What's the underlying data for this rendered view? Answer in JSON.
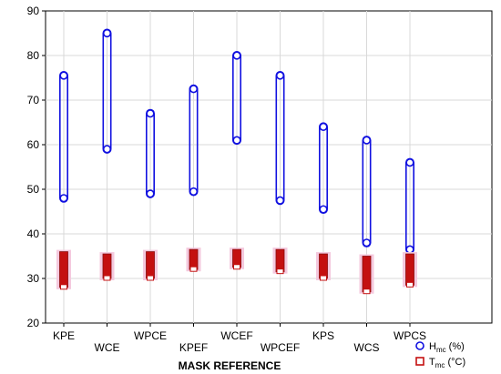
{
  "chart_data": {
    "type": "scatter",
    "xlabel": "MASK REFERENCE",
    "ylabel": "",
    "ylim": [
      20,
      90
    ],
    "yticks": [
      20,
      30,
      40,
      50,
      60,
      70,
      80,
      90
    ],
    "grid": true,
    "legend_position": "bottom-right",
    "categories": [
      "KPE",
      "WCE",
      "WPCE",
      "KPEF",
      "WCEF",
      "WPCEF",
      "KPS",
      "WCS",
      "WPCS"
    ],
    "series": [
      {
        "name": "H",
        "subscript": "mc",
        "unit": " (%)",
        "color": "#1010e0",
        "marker": "circle",
        "ranges": [
          {
            "category": "KPE",
            "min": 48,
            "max": 75.5
          },
          {
            "category": "WCE",
            "min": 59,
            "max": 85
          },
          {
            "category": "WPCE",
            "min": 49,
            "max": 67
          },
          {
            "category": "KPEF",
            "min": 49.5,
            "max": 72.5
          },
          {
            "category": "WCEF",
            "min": 61,
            "max": 80
          },
          {
            "category": "WPCEF",
            "min": 47.5,
            "max": 75.5
          },
          {
            "category": "KPS",
            "min": 45.5,
            "max": 64
          },
          {
            "category": "WCS",
            "min": 38,
            "max": 61
          },
          {
            "category": "WPCS",
            "min": 36.5,
            "max": 56
          }
        ]
      },
      {
        "name": "T",
        "subscript": "mc",
        "unit": " (°C)",
        "color": "#c41010",
        "marker": "square",
        "ranges": [
          {
            "category": "KPE",
            "min": 28,
            "max": 36
          },
          {
            "category": "WCE",
            "min": 30,
            "max": 35.5
          },
          {
            "category": "WPCE",
            "min": 30,
            "max": 36
          },
          {
            "category": "KPEF",
            "min": 32,
            "max": 36.5
          },
          {
            "category": "WCEF",
            "min": 32.5,
            "max": 36.5
          },
          {
            "category": "WPCEF",
            "min": 31.5,
            "max": 36.5
          },
          {
            "category": "KPS",
            "min": 30,
            "max": 35.5
          },
          {
            "category": "WCS",
            "min": 27,
            "max": 35
          },
          {
            "category": "WPCS",
            "min": 28.5,
            "max": 35.5
          }
        ]
      }
    ]
  }
}
